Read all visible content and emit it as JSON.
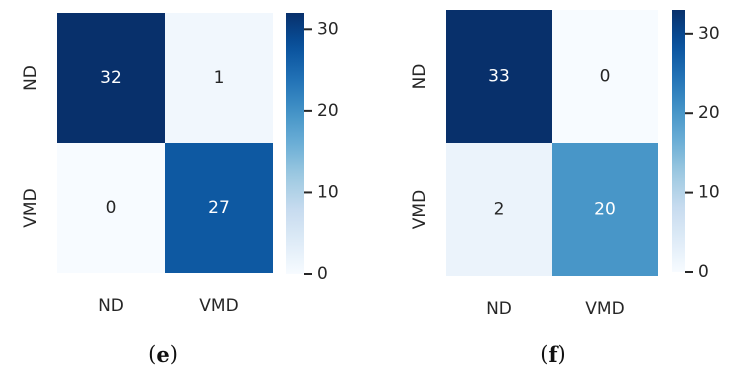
{
  "chart_data": [
    {
      "type": "heatmap",
      "panel_label": "e",
      "rows": [
        "ND",
        "VMD"
      ],
      "cols": [
        "ND",
        "VMD"
      ],
      "values": [
        [
          32,
          1
        ],
        [
          0,
          27
        ]
      ],
      "colorbar": {
        "min": 0,
        "max": 32,
        "ticks": [
          0,
          10,
          20,
          30
        ],
        "colormap": "Blues"
      }
    },
    {
      "type": "heatmap",
      "panel_label": "f",
      "rows": [
        "ND",
        "VMD"
      ],
      "cols": [
        "ND",
        "VMD"
      ],
      "values": [
        [
          33,
          0
        ],
        [
          2,
          20
        ]
      ],
      "colorbar": {
        "min": 0,
        "max": 33,
        "ticks": [
          0,
          10,
          20,
          30
        ],
        "colormap": "Blues"
      }
    }
  ]
}
